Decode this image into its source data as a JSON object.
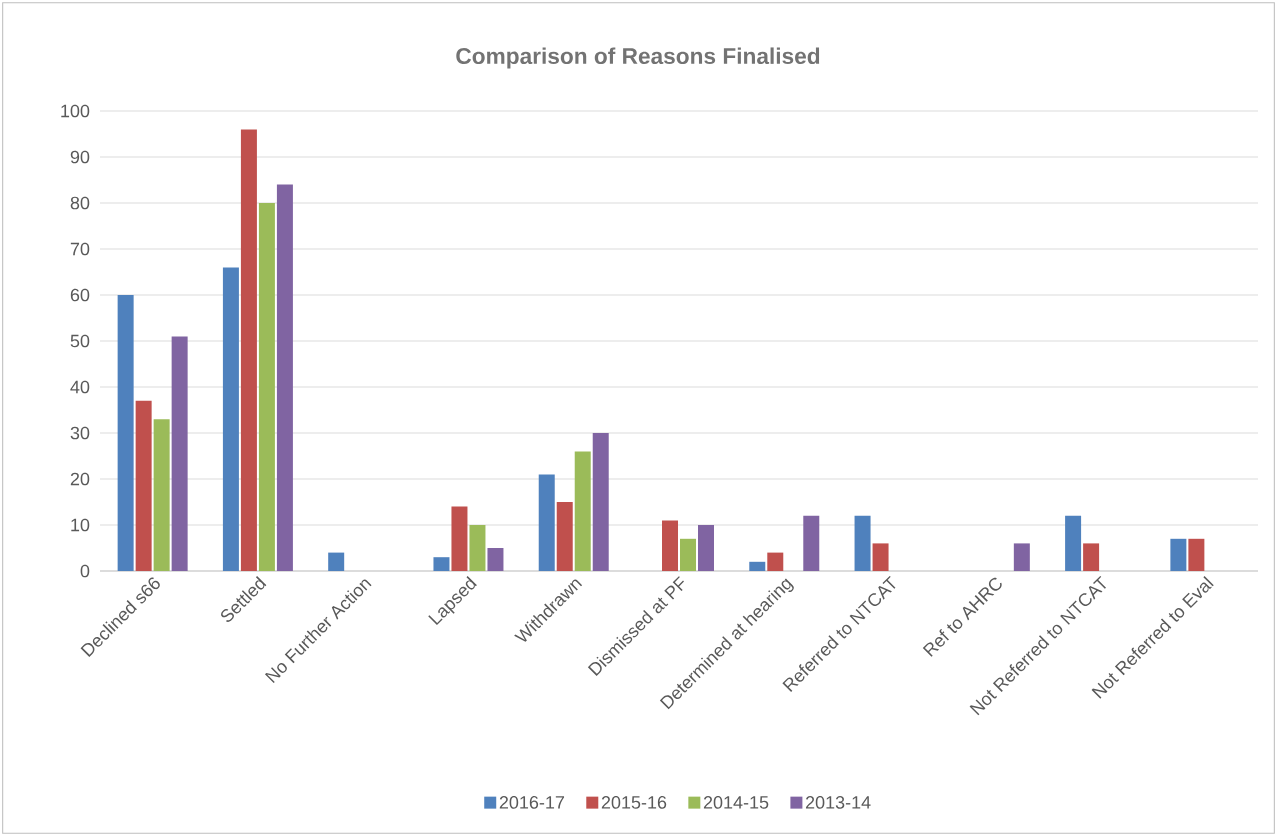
{
  "chart_data": {
    "type": "bar",
    "title": "Comparison of Reasons Finalised",
    "categories": [
      "Declined s66",
      "Settled",
      "No Further Action",
      "Lapsed",
      "Withdrawn",
      "Dismissed at PF",
      "Determined at hearing",
      "Referred to NTCAT",
      "Ref to AHRC",
      "Not Referred to NTCAT",
      "Not Referred to Eval"
    ],
    "series": [
      {
        "name": "2016-17",
        "color": "#4f81bd",
        "values": [
          60,
          66,
          4,
          3,
          21,
          null,
          2,
          12,
          null,
          12,
          7
        ]
      },
      {
        "name": "2015-16",
        "color": "#c0504d",
        "values": [
          37,
          96,
          null,
          14,
          15,
          11,
          4,
          6,
          null,
          6,
          7
        ]
      },
      {
        "name": "2014-15",
        "color": "#9bbb59",
        "values": [
          33,
          80,
          null,
          10,
          26,
          7,
          null,
          null,
          null,
          null,
          null
        ]
      },
      {
        "name": "2013-14",
        "color": "#8064a2",
        "values": [
          51,
          84,
          null,
          5,
          30,
          10,
          12,
          null,
          6,
          null,
          null
        ]
      }
    ],
    "ylim": [
      0,
      100
    ],
    "yticks": [
      0,
      10,
      20,
      30,
      40,
      50,
      60,
      70,
      80,
      90,
      100
    ],
    "grid": "y",
    "legend": "bottom"
  }
}
